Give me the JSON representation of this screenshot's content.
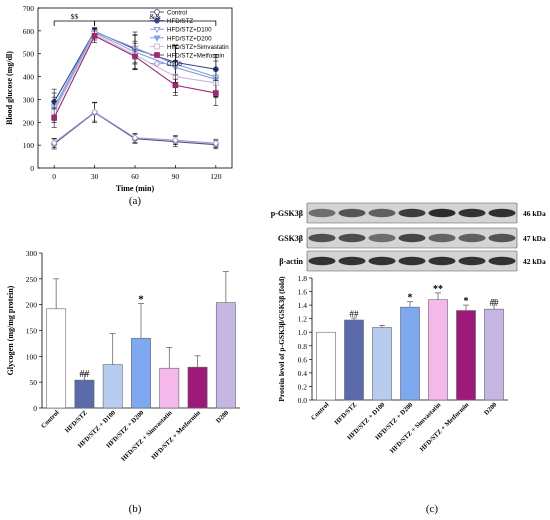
{
  "panels": {
    "a": "(a)",
    "b": "(b)",
    "c": "(c)"
  },
  "colors": {
    "control": "#4a5878",
    "hfd_stz": "#33448f",
    "d100": "#8c98d8",
    "d200_line": "#7fa3e0",
    "simvastatin_line": "#cbb8e0",
    "metformin": "#9a2a6e",
    "d200_only": "#b08cd4",
    "bar_d100": "#b8ccf0",
    "bar_d200": "#7ea8f0",
    "bar_simva": "#f4b8ea",
    "bar_metf": "#9e1a7a",
    "bar_d200_only": "#c6b6e4"
  },
  "chart_data": [
    {
      "type": "line",
      "panel": "(a)",
      "xlabel": "Time (min)",
      "ylabel": "Blood glucose (mg/dl)",
      "x": [
        0,
        30,
        60,
        90,
        120
      ],
      "xlim": [
        -12,
        132
      ],
      "ylim": [
        0,
        700
      ],
      "yticks": [
        0,
        100,
        200,
        300,
        400,
        500,
        600,
        700
      ],
      "legend_position": "top-right",
      "annotations": [
        "$$",
        "&&"
      ],
      "series": [
        {
          "name": "Control",
          "marker": "circle-open",
          "color": "#4a5878",
          "values": [
            105,
            243,
            128,
            115,
            102
          ],
          "errors": [
            22,
            45,
            20,
            22,
            18
          ]
        },
        {
          "name": "HFD/STZ",
          "marker": "circle-filled",
          "color": "#33448f",
          "values": [
            290,
            598,
            520,
            462,
            432
          ],
          "errors": [
            55,
            15,
            60,
            75,
            65
          ]
        },
        {
          "name": "HFD/STZ+D100",
          "marker": "triangle-down-open",
          "color": "#8c98d8",
          "values": [
            268,
            596,
            525,
            455,
            398
          ],
          "errors": [
            60,
            18,
            70,
            80,
            85
          ]
        },
        {
          "name": "HFD/STZ+D200",
          "marker": "triangle-down-filled",
          "color": "#7fa3e0",
          "values": [
            255,
            592,
            508,
            440,
            388
          ],
          "errors": [
            55,
            20,
            75,
            85,
            80
          ]
        },
        {
          "name": "HFD/STZ+Simvastatin",
          "marker": "square-open",
          "color": "#cbb8e0",
          "values": [
            245,
            585,
            495,
            400,
            372
          ],
          "errors": [
            45,
            25,
            60,
            70,
            60
          ]
        },
        {
          "name": "HFD/STZ+Metformin",
          "marker": "square-filled",
          "color": "#9a2a6e",
          "values": [
            220,
            578,
            488,
            362,
            328
          ],
          "errors": [
            42,
            30,
            58,
            45,
            55
          ]
        },
        {
          "name": "D200",
          "marker": "diamond-open",
          "color": "#b08cd4",
          "values": [
            110,
            245,
            132,
            122,
            108
          ],
          "errors": [
            20,
            40,
            20,
            20,
            18
          ]
        }
      ]
    },
    {
      "type": "bar",
      "panel": "(b)",
      "ylabel": "Glycogen (mg/mg protein)",
      "ylim": [
        0,
        300
      ],
      "yticks": [
        0,
        50,
        100,
        150,
        200,
        250,
        300
      ],
      "categories": [
        "Control",
        "HFD/STZ",
        "HFD/STZ + D100",
        "HFD/STZ + D200",
        "HFD/STZ + Simvastatin",
        "HFD/STZ + Metformin",
        "D200"
      ],
      "values": [
        192,
        54,
        84,
        135,
        77,
        79,
        204
      ],
      "errors": [
        58,
        12,
        60,
        67,
        40,
        22,
        60
      ],
      "significance": [
        "",
        "##",
        "",
        "*",
        "",
        "",
        ""
      ],
      "colors": [
        "#ffffff",
        "#5a6aaa",
        "#b8ccf0",
        "#7ea8f0",
        "#f4b8ea",
        "#9e1a7a",
        "#c6b6e4"
      ]
    },
    {
      "type": "bar",
      "panel": "(c)",
      "ylabel": "Protein level of p-GSK3β/GSK3β (fold)",
      "ylim": [
        0,
        1.8
      ],
      "yticks": [
        0.0,
        0.2,
        0.4,
        0.6,
        0.8,
        1.0,
        1.2,
        1.4,
        1.6,
        1.8
      ],
      "categories": [
        "Control",
        "HFD/STZ",
        "HFD/STZ + D100",
        "HFD/STZ + D200",
        "HFD/STZ + Simvastatin",
        "HFD/STZ + Metformin",
        "D200"
      ],
      "values": [
        1.0,
        1.18,
        1.07,
        1.37,
        1.48,
        1.32,
        1.34
      ],
      "errors": [
        0.0,
        0.03,
        0.03,
        0.08,
        0.1,
        0.08,
        0.14
      ],
      "significance": [
        "",
        "##",
        "",
        "*",
        "**",
        "*",
        "##"
      ],
      "colors": [
        "#ffffff",
        "#5a6aaa",
        "#b8ccf0",
        "#7ea8f0",
        "#f4b8ea",
        "#9e1a7a",
        "#c6b6e4"
      ],
      "blots": [
        {
          "label": "p-GSK3β",
          "kda": "46 kDa",
          "intensity": [
            0.55,
            0.68,
            0.62,
            0.8,
            0.88,
            0.85,
            0.86
          ]
        },
        {
          "label": "GSK3β",
          "kda": "47 kDa",
          "intensity": [
            0.7,
            0.72,
            0.55,
            0.75,
            0.6,
            0.62,
            0.68
          ]
        },
        {
          "label": "β-actin",
          "kda": "42 kDa",
          "intensity": [
            0.85,
            0.85,
            0.85,
            0.85,
            0.85,
            0.85,
            0.85
          ]
        }
      ]
    }
  ]
}
